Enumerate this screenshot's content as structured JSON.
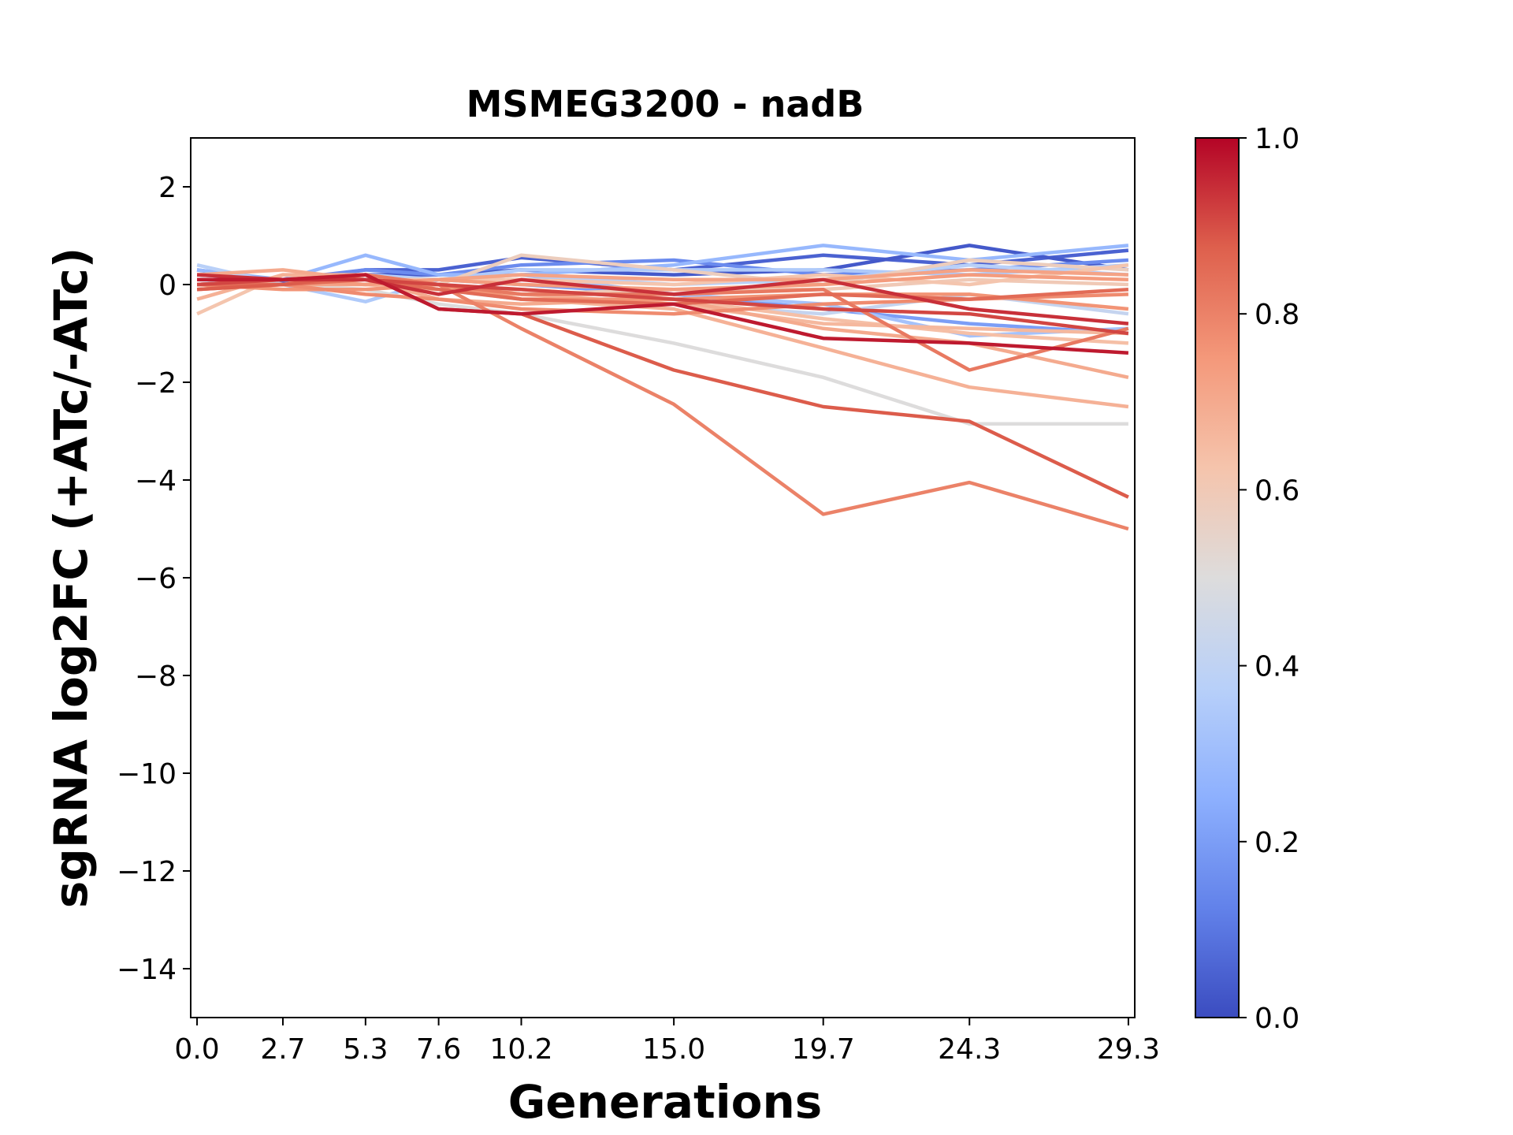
{
  "chart_data": {
    "type": "line",
    "title": "MSMEG3200 - nadB",
    "xlabel": "Generations",
    "ylabel": "sgRNA log2FC (+ATc/-ATc)",
    "x": [
      0.0,
      2.7,
      5.3,
      7.6,
      10.2,
      15.0,
      19.7,
      24.3,
      29.3
    ],
    "x_tick_labels": [
      "0.0",
      "2.7",
      "5.3",
      "7.6",
      "10.2",
      "15.0",
      "19.7",
      "24.3",
      "29.3"
    ],
    "xlim": [
      -0.2,
      29.5
    ],
    "ylim": [
      -15,
      3
    ],
    "y_ticks": [
      2,
      0,
      -2,
      -4,
      -6,
      -8,
      -10,
      -12,
      -14
    ],
    "y_tick_labels": [
      "2",
      "0",
      "−2",
      "−4",
      "−6",
      "−8",
      "−10",
      "−12",
      "−14"
    ],
    "grid": false,
    "colormap": "coolwarm",
    "colorbar": {
      "range": [
        0.0,
        1.0
      ],
      "ticks": [
        0.0,
        0.2,
        0.4,
        0.6,
        0.8,
        1.0
      ],
      "tick_labels": [
        "0.0",
        "0.2",
        "0.4",
        "0.6",
        "0.8",
        "1.0"
      ],
      "stops": [
        "#3b4cc0",
        "#6282ea",
        "#8db0fe",
        "#b8d0f9",
        "#dddcdc",
        "#f5c4ac",
        "#f4987a",
        "#de604d",
        "#b40426"
      ]
    },
    "series": [
      {
        "c": 0.05,
        "values": [
          0.3,
          0.05,
          0.3,
          0.3,
          0.55,
          0.3,
          0.6,
          0.4,
          0.7
        ]
      },
      {
        "c": 0.03,
        "values": [
          0.1,
          0.1,
          0.2,
          0.2,
          0.3,
          0.2,
          0.3,
          0.8,
          0.3
        ]
      },
      {
        "c": 0.15,
        "values": [
          0.2,
          0.1,
          0.3,
          0.2,
          0.4,
          0.5,
          0.2,
          0.3,
          0.5
        ]
      },
      {
        "c": 0.2,
        "values": [
          0.0,
          0.1,
          0.1,
          0.1,
          0.0,
          -0.2,
          -0.5,
          -0.8,
          -1.0
        ]
      },
      {
        "c": 0.28,
        "values": [
          0.3,
          0.1,
          0.6,
          0.2,
          0.2,
          0.4,
          0.8,
          0.5,
          0.8
        ]
      },
      {
        "c": 0.32,
        "values": [
          0.1,
          0.1,
          0.0,
          0.1,
          0.2,
          -0.2,
          -0.4,
          -1.05,
          -0.9
        ]
      },
      {
        "c": 0.35,
        "values": [
          0.0,
          0.0,
          -0.35,
          0.1,
          0.3,
          0.3,
          0.3,
          0.2,
          0.4
        ]
      },
      {
        "c": 0.38,
        "values": [
          0.4,
          0.0,
          0.2,
          0.1,
          0.2,
          0.0,
          0.1,
          0.4,
          0.2
        ]
      },
      {
        "c": 0.42,
        "values": [
          0.1,
          0.0,
          0.1,
          -0.1,
          -0.3,
          -0.4,
          -0.6,
          -0.2,
          -0.6
        ]
      },
      {
        "c": 0.5,
        "values": [
          0.0,
          0.0,
          -0.1,
          -0.4,
          -0.6,
          -1.2,
          -1.9,
          -2.85,
          -2.85
        ]
      },
      {
        "c": 0.58,
        "values": [
          -0.1,
          0.0,
          0.1,
          0.0,
          0.6,
          0.3,
          0.0,
          0.5,
          0.3
        ]
      },
      {
        "c": 0.6,
        "values": [
          0.0,
          0.1,
          0.1,
          0.0,
          -0.2,
          -0.1,
          -0.1,
          0.1,
          0.0
        ]
      },
      {
        "c": 0.62,
        "values": [
          -0.6,
          0.2,
          0.1,
          0.1,
          0.1,
          0.0,
          0.2,
          0.0,
          0.4
        ]
      },
      {
        "c": 0.64,
        "values": [
          0.1,
          0.1,
          0.1,
          -0.1,
          -0.1,
          -0.3,
          -0.7,
          -1.0,
          -1.2
        ]
      },
      {
        "c": 0.66,
        "values": [
          0.0,
          0.1,
          0.0,
          -0.1,
          -0.2,
          -0.4,
          -0.8,
          -0.9,
          -1.0
        ]
      },
      {
        "c": 0.68,
        "values": [
          -0.3,
          0.2,
          0.2,
          0.0,
          -0.3,
          -0.5,
          -1.3,
          -2.1,
          -2.5
        ]
      },
      {
        "c": 0.7,
        "values": [
          0.2,
          0.3,
          0.1,
          -0.3,
          -0.4,
          -0.3,
          -0.9,
          -1.2,
          -1.9
        ]
      },
      {
        "c": 0.72,
        "values": [
          0.0,
          0.0,
          0.0,
          0.1,
          0.2,
          0.1,
          0.1,
          0.3,
          0.2
        ]
      },
      {
        "c": 0.74,
        "values": [
          0.1,
          0.1,
          0.0,
          0.1,
          0.0,
          -0.1,
          0.0,
          0.2,
          0.1
        ]
      },
      {
        "c": 0.76,
        "values": [
          0.0,
          -0.1,
          -0.1,
          0.0,
          -0.3,
          -0.3,
          -0.2,
          -0.2,
          -0.5
        ]
      },
      {
        "c": 0.78,
        "values": [
          -0.1,
          0.0,
          -0.2,
          -0.3,
          -0.5,
          -0.6,
          -0.4,
          -0.3,
          -0.2
        ]
      },
      {
        "c": 0.8,
        "values": [
          0.0,
          0.1,
          0.1,
          0.0,
          -0.9,
          -2.45,
          -4.7,
          -4.05,
          -5.0
        ]
      },
      {
        "c": 0.82,
        "values": [
          0.1,
          0.1,
          0.2,
          0.0,
          -0.2,
          -0.2,
          -0.1,
          -1.75,
          -0.9
        ]
      },
      {
        "c": 0.85,
        "values": [
          0.0,
          0.0,
          0.1,
          -0.1,
          -0.3,
          -0.4,
          -0.2,
          -0.3,
          -0.1
        ]
      },
      {
        "c": 0.88,
        "values": [
          -0.1,
          0.0,
          0.2,
          -0.5,
          -0.6,
          -1.75,
          -2.5,
          -2.8,
          -4.35
        ]
      },
      {
        "c": 0.91,
        "values": [
          0.0,
          0.1,
          0.1,
          0.0,
          -0.1,
          -0.3,
          -0.5,
          -0.6,
          -1.0
        ]
      },
      {
        "c": 0.94,
        "values": [
          0.2,
          0.1,
          0.1,
          -0.2,
          0.1,
          -0.2,
          0.1,
          -0.5,
          -0.8
        ]
      },
      {
        "c": 0.97,
        "values": [
          0.1,
          0.1,
          0.2,
          -0.5,
          -0.6,
          -0.4,
          -1.1,
          -1.2,
          -1.4
        ]
      }
    ]
  }
}
